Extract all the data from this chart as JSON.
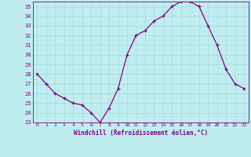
{
  "x": [
    0,
    1,
    2,
    3,
    4,
    5,
    6,
    7,
    8,
    9,
    10,
    11,
    12,
    13,
    14,
    15,
    16,
    17,
    18,
    19,
    20,
    21,
    22,
    23
  ],
  "y": [
    28,
    27,
    26,
    25.5,
    25,
    24.8,
    24,
    23,
    24.5,
    26.5,
    30,
    32,
    32.5,
    33.5,
    34,
    35,
    35.5,
    35.5,
    35,
    33,
    31,
    28.5,
    27,
    26.5
  ],
  "xlabel": "Windchill (Refroidissement éolien,°C)",
  "xlim": [
    -0.5,
    23.5
  ],
  "ylim": [
    23,
    35.5
  ],
  "yticks": [
    23,
    24,
    25,
    26,
    27,
    28,
    29,
    30,
    31,
    32,
    33,
    34,
    35
  ],
  "xticks": [
    0,
    1,
    2,
    3,
    4,
    5,
    6,
    7,
    8,
    9,
    10,
    11,
    12,
    13,
    14,
    15,
    16,
    17,
    18,
    19,
    20,
    21,
    22,
    23
  ],
  "line_color": "#800080",
  "marker": "+",
  "bg_color": "#c0eef0",
  "grid_color": "#aadddd",
  "font_color": "#800080"
}
